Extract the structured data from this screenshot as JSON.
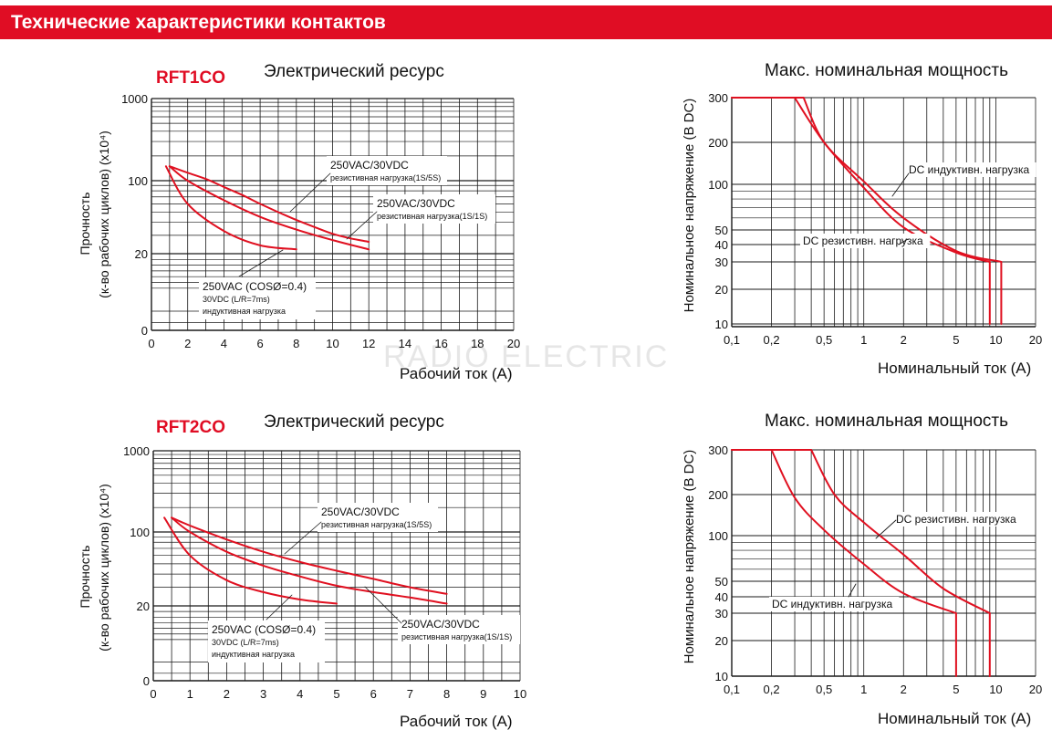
{
  "header": {
    "title": "Технические характеристики контактов"
  },
  "watermark": "RADIO ELECTRIC",
  "chart_data": [
    {
      "id": "rft1co-life",
      "type": "line",
      "model_label": "RFT1CO",
      "title": "Электрический ресурс",
      "xlabel": "Рабочий ток (А)",
      "ylabel_line1": "Прочность",
      "ylabel_line2": "(к-во рабочих циклов) (x10⁴)",
      "x_ticks": [
        0,
        2,
        4,
        6,
        8,
        10,
        12,
        14,
        16,
        18,
        20
      ],
      "xlim": [
        0,
        20
      ],
      "y_ticks": [
        0,
        20,
        100,
        1000
      ],
      "grid": true,
      "series": [
        {
          "x": [
            1,
            2,
            3,
            4,
            5,
            6,
            7,
            8,
            9,
            10,
            11,
            12
          ],
          "y": [
            150,
            125,
            105,
            87,
            73,
            60,
            50,
            42,
            36,
            31,
            28,
            26
          ]
        },
        {
          "x": [
            1,
            2,
            4,
            6,
            8,
            10,
            12
          ],
          "y": [
            150,
            100,
            65,
            45,
            34,
            27,
            22
          ]
        },
        {
          "x": [
            0.8,
            2,
            4,
            6,
            8
          ],
          "y": [
            150,
            60,
            33,
            24,
            22
          ]
        }
      ],
      "annotations": [
        {
          "line1": "250VAC/30VDC",
          "line2": "резистивная нагрузка(1S/5S)"
        },
        {
          "line1": "250VAC/30VDC",
          "line2": "резистивная нагрузка(1S/1S)"
        },
        {
          "line1": "250VAC (COSØ=0.4)",
          "line2": "30VDC (L/R=7ms)",
          "line3": "индуктивная нагрузка"
        }
      ]
    },
    {
      "id": "rft2co-life",
      "type": "line",
      "model_label": "RFT2CO",
      "title": "Электрический ресурс",
      "xlabel": "Рабочий ток (А)",
      "ylabel_line1": "Прочность",
      "ylabel_line2": "(к-во рабочих циклов) (x10⁴)",
      "x_ticks": [
        0,
        1,
        2,
        3,
        4,
        5,
        6,
        7,
        8,
        9,
        10
      ],
      "xlim": [
        0,
        10
      ],
      "y_ticks": [
        0,
        20,
        100,
        1000
      ],
      "grid": true,
      "series": [
        {
          "x": [
            0.5,
            1,
            2,
            3,
            4,
            5,
            6,
            7,
            8
          ],
          "y": [
            150,
            120,
            85,
            65,
            52,
            43,
            36,
            30,
            26
          ]
        },
        {
          "x": [
            0.5,
            1,
            2,
            3,
            4,
            5,
            6,
            7,
            8
          ],
          "y": [
            150,
            100,
            65,
            48,
            38,
            31,
            27,
            24,
            21
          ]
        },
        {
          "x": [
            0.3,
            1,
            2,
            3,
            4,
            5
          ],
          "y": [
            150,
            60,
            35,
            27,
            23,
            21
          ]
        }
      ],
      "annotations": [
        {
          "line1": "250VAC/30VDC",
          "line2": "резистивная нагрузка(1S/5S)"
        },
        {
          "line1": "250VAC/30VDC",
          "line2": "резистивная нагрузка(1S/1S)"
        },
        {
          "line1": "250VAC (COSØ=0.4)",
          "line2": "30VDC (L/R=7ms)",
          "line3": "индуктивная нагрузка"
        }
      ]
    },
    {
      "id": "rft1co-power",
      "type": "line",
      "title": "Макс. номинальная мощность",
      "xlabel": "Номинальный ток (А)",
      "ylabel": "Номинальное напряжение (В DC)",
      "x_scale": "log",
      "y_scale": "log",
      "x_ticks": [
        "0,1",
        "0,2",
        "0,5",
        "1",
        "2",
        "5",
        "10",
        "20"
      ],
      "xlim": [
        0.1,
        20
      ],
      "y_ticks": [
        "10",
        "20",
        "30",
        "40",
        "50",
        "100",
        "200",
        "300"
      ],
      "ylim": [
        10,
        300
      ],
      "grid": true,
      "series": [
        {
          "name": "DC индуктивн. нагрузка",
          "x": [
            0.1,
            0.35,
            0.5,
            1,
            2,
            5,
            11,
            11
          ],
          "y": [
            300,
            300,
            200,
            105,
            60,
            36,
            30,
            10
          ]
        },
        {
          "name": "DC резистивн. нагрузка",
          "x": [
            0.1,
            0.3,
            0.5,
            1,
            2,
            5,
            9,
            9
          ],
          "y": [
            300,
            300,
            200,
            95,
            52,
            35,
            30,
            10
          ]
        }
      ]
    },
    {
      "id": "rft2co-power",
      "type": "line",
      "title": "Макс. номинальная мощность",
      "xlabel": "Номинальный ток (А)",
      "ylabel": "Номинальное напряжение (В DC)",
      "x_scale": "log",
      "y_scale": "log",
      "x_ticks": [
        "0,1",
        "0,2",
        "0,5",
        "1",
        "2",
        "5",
        "10",
        "20"
      ],
      "xlim": [
        0.1,
        20
      ],
      "y_ticks": [
        "10",
        "20",
        "30",
        "40",
        "50",
        "100",
        "200",
        "300"
      ],
      "ylim": [
        10,
        300
      ],
      "grid": true,
      "series": [
        {
          "name": "DC резистивн. нагрузка",
          "x": [
            0.1,
            0.4,
            0.6,
            1,
            2,
            4,
            9,
            9
          ],
          "y": [
            300,
            300,
            200,
            125,
            75,
            45,
            30,
            10
          ]
        },
        {
          "name": "DC индуктивн. нагрузка",
          "x": [
            0.1,
            0.2,
            0.3,
            0.5,
            1,
            2,
            5,
            5
          ],
          "y": [
            300,
            300,
            190,
            110,
            65,
            42,
            30,
            10
          ]
        }
      ]
    }
  ],
  "colors": {
    "accent": "#e00d24",
    "curve": "#e01020",
    "grid": "#1a1a1a"
  }
}
